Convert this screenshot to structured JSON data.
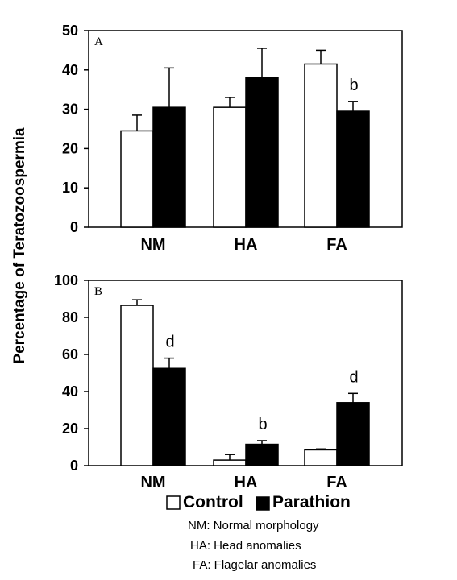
{
  "y_axis_label": "Percentage of Teratozoospermia",
  "legend": {
    "items": [
      {
        "label": "Control",
        "color": "#ffffff"
      },
      {
        "label": "Parathion",
        "color": "#000000"
      }
    ]
  },
  "notes": [
    "NM: Normal morphology",
    "HA: Head anomalies",
    "FA: Flagelar anomalies"
  ],
  "chart_data": [
    {
      "type": "bar",
      "panel_label": "A",
      "categories": [
        "NM",
        "HA",
        "FA"
      ],
      "ylim": [
        0,
        50
      ],
      "yticks": [
        0,
        10,
        20,
        30,
        40,
        50
      ],
      "series": [
        {
          "name": "Control",
          "color": "#ffffff",
          "values": [
            24.5,
            30.5,
            41.5
          ],
          "errors": [
            4,
            2.5,
            3.5
          ]
        },
        {
          "name": "Parathion",
          "color": "#000000",
          "values": [
            30.5,
            38,
            29.5
          ],
          "errors": [
            10,
            7.5,
            2.5
          ]
        }
      ],
      "annotations": [
        {
          "category": "FA",
          "series": "Parathion",
          "text": "b"
        }
      ]
    },
    {
      "type": "bar",
      "panel_label": "B",
      "categories": [
        "NM",
        "HA",
        "FA"
      ],
      "ylim": [
        0,
        100
      ],
      "yticks": [
        0,
        20,
        40,
        60,
        80,
        100
      ],
      "series": [
        {
          "name": "Control",
          "color": "#ffffff",
          "values": [
            86.5,
            3,
            8.5
          ],
          "errors": [
            3,
            3,
            0.5
          ]
        },
        {
          "name": "Parathion",
          "color": "#000000",
          "values": [
            52.5,
            11.5,
            34
          ],
          "errors": [
            5.5,
            2,
            5
          ]
        }
      ],
      "annotations": [
        {
          "category": "NM",
          "series": "Parathion",
          "text": "d"
        },
        {
          "category": "HA",
          "series": "Parathion",
          "text": "b"
        },
        {
          "category": "FA",
          "series": "Parathion",
          "text": "d"
        }
      ]
    }
  ]
}
